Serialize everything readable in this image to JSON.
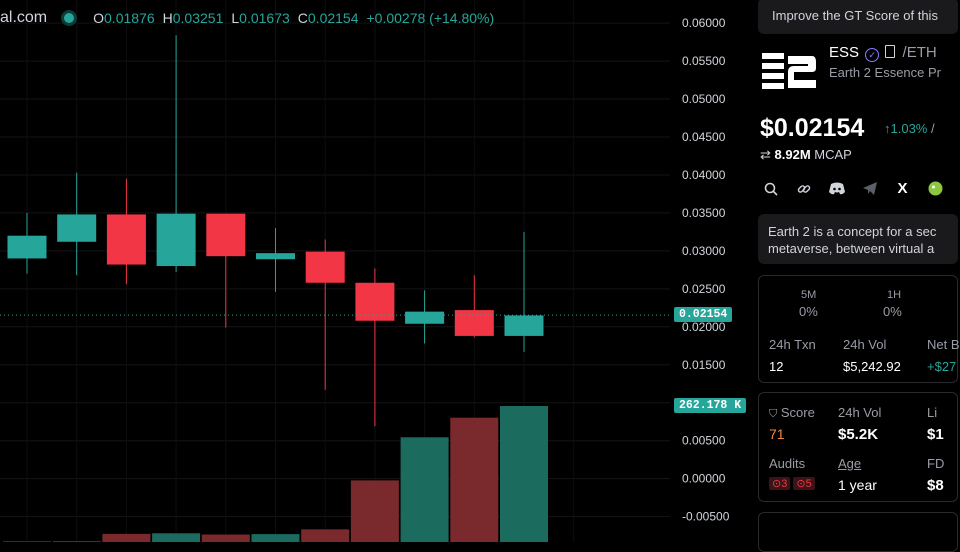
{
  "legend": {
    "site": "al.com",
    "open_key": "O",
    "open": "0.01876",
    "high_key": "H",
    "high": "0.03251",
    "low_key": "L",
    "low": "0.01673",
    "close_key": "C",
    "close": "0.02154",
    "change": "+0.00278 (+14.80%)"
  },
  "colors": {
    "up": "#26a69a",
    "down": "#f23645",
    "up_volume": "#1b6b5f",
    "down_volume": "#7a2a2d"
  },
  "chart_data": {
    "type": "candlestick",
    "y_ticks": [
      "0.06000",
      "0.05500",
      "0.05000",
      "0.04500",
      "0.04000",
      "0.03500",
      "0.03000",
      "0.02500",
      "0.02000",
      "0.01500",
      "0.01000",
      "0.00500",
      "0.00000",
      "-0.00500"
    ],
    "ylim": [
      -0.0065,
      0.0612
    ],
    "candles": [
      {
        "open": 0.029,
        "close": 0.032,
        "high": 0.035,
        "low": 0.027
      },
      {
        "open": 0.0312,
        "close": 0.0348,
        "high": 0.0403,
        "low": 0.0268
      },
      {
        "open": 0.0348,
        "close": 0.0282,
        "high": 0.0395,
        "low": 0.0256
      },
      {
        "open": 0.028,
        "close": 0.0349,
        "high": 0.0584,
        "low": 0.0272
      },
      {
        "open": 0.0349,
        "close": 0.0293,
        "high": 0.0347,
        "low": 0.0199
      },
      {
        "open": 0.0289,
        "close": 0.0297,
        "high": 0.033,
        "low": 0.0246
      },
      {
        "open": 0.0299,
        "close": 0.0258,
        "high": 0.0315,
        "low": 0.0117
      },
      {
        "open": 0.0258,
        "close": 0.0208,
        "high": 0.0277,
        "low": 0.0069
      },
      {
        "open": 0.0204,
        "close": 0.022,
        "high": 0.0248,
        "low": 0.0178
      },
      {
        "open": 0.0222,
        "close": 0.0188,
        "high": 0.0268,
        "low": 0.0186
      },
      {
        "open": 0.0188,
        "close": 0.0215,
        "high": 0.0325,
        "low": 0.0167
      }
    ],
    "volume_max_label": "262.178 K",
    "volumes": [
      0.4,
      0.5,
      6.0,
      6.4,
      5.5,
      5.8,
      9.3,
      45.3,
      77.0,
      91.4,
      100.0
    ],
    "last_price_label": "0.02154",
    "last_price": 0.02154
  },
  "panel": {
    "banner": "Improve the GT Score of this",
    "symbol": "ESS",
    "pair": "/ETH",
    "token_name": "Earth 2 Essence Pr",
    "price": "$0.02154",
    "price_change": "↑1.03%",
    "price_change_sep": "/",
    "mcap_value": "8.92M",
    "mcap_label": "MCAP",
    "description_line1": "Earth 2 is a concept for a sec",
    "description_line2": "metaverse, between virtual a",
    "stats": {
      "col1_label": "5M",
      "col1_value": "0%",
      "col2_label": "1H",
      "col2_value": "0%",
      "txn_label": "24h Txn",
      "txn_value": "12",
      "vol_label": "24h Vol",
      "vol_value": "$5,242.92",
      "net_label": "Net B",
      "net_value": "+$27"
    },
    "score": {
      "score_label": "Score",
      "score_value": "71",
      "vol_label": "24h Vol",
      "vol_value": "$5.2K",
      "liq_label": "Li",
      "liq_value": "$1",
      "audits_label": "Audits",
      "audit_a": "3",
      "audit_b": "5",
      "age_label": "Age",
      "age_value": "1 year",
      "fd_label": "FD",
      "fd_value": "$8"
    }
  }
}
